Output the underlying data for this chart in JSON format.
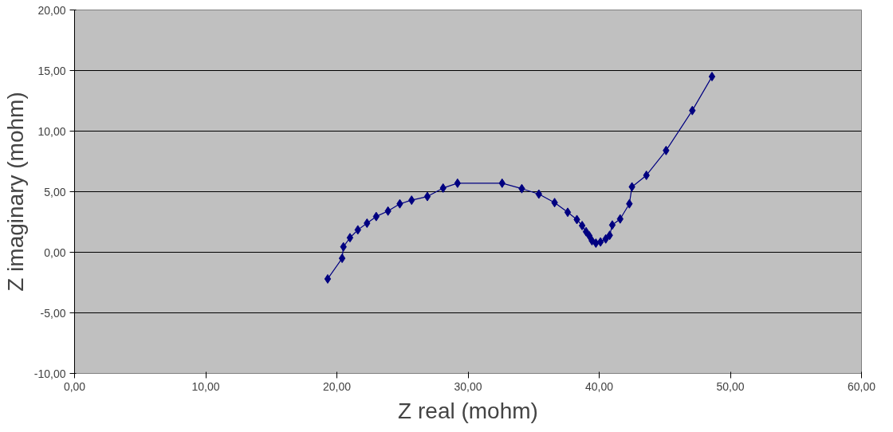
{
  "chart_data": {
    "type": "line",
    "xlabel": "Z real (mohm)",
    "ylabel": "Z imaginary (mohm)",
    "xlim": [
      0,
      60
    ],
    "ylim": [
      -10,
      20
    ],
    "xticks": [
      {
        "value": 0,
        "label": "0,00"
      },
      {
        "value": 10,
        "label": "10,00"
      },
      {
        "value": 20,
        "label": "20,00"
      },
      {
        "value": 30,
        "label": "30,00"
      },
      {
        "value": 40,
        "label": "40,00"
      },
      {
        "value": 50,
        "label": "50,00"
      },
      {
        "value": 60,
        "label": "60,00"
      }
    ],
    "yticks": [
      {
        "value": -10,
        "label": "-10,00"
      },
      {
        "value": -5,
        "label": "-5,00"
      },
      {
        "value": 0,
        "label": "0,00"
      },
      {
        "value": 5,
        "label": "5,00"
      },
      {
        "value": 10,
        "label": "10,00"
      },
      {
        "value": 15,
        "label": "15,00"
      },
      {
        "value": 20,
        "label": "20,00"
      }
    ],
    "grid": "y",
    "marker": "diamond",
    "line_style": "solid",
    "series": [
      {
        "color": "#000080",
        "x": [
          19.3,
          20.4,
          20.5,
          21.0,
          21.6,
          22.3,
          23.0,
          23.9,
          24.8,
          25.7,
          26.9,
          28.1,
          29.2,
          32.6,
          34.1,
          35.4,
          36.6,
          37.6,
          38.3,
          38.7,
          39.0,
          39.25,
          39.45,
          39.75,
          40.1,
          40.5,
          40.8,
          41.0,
          41.6,
          42.3,
          42.5,
          43.6,
          45.1,
          47.1,
          48.6
        ],
        "values": [
          -2.2,
          -0.5,
          0.45,
          1.2,
          1.85,
          2.4,
          2.95,
          3.4,
          4.0,
          4.3,
          4.6,
          5.3,
          5.7,
          5.7,
          5.25,
          4.8,
          4.1,
          3.3,
          2.7,
          2.2,
          1.7,
          1.35,
          0.95,
          0.75,
          0.85,
          1.1,
          1.4,
          2.25,
          2.75,
          4.0,
          5.4,
          6.35,
          8.4,
          11.7,
          14.5
        ]
      }
    ]
  }
}
